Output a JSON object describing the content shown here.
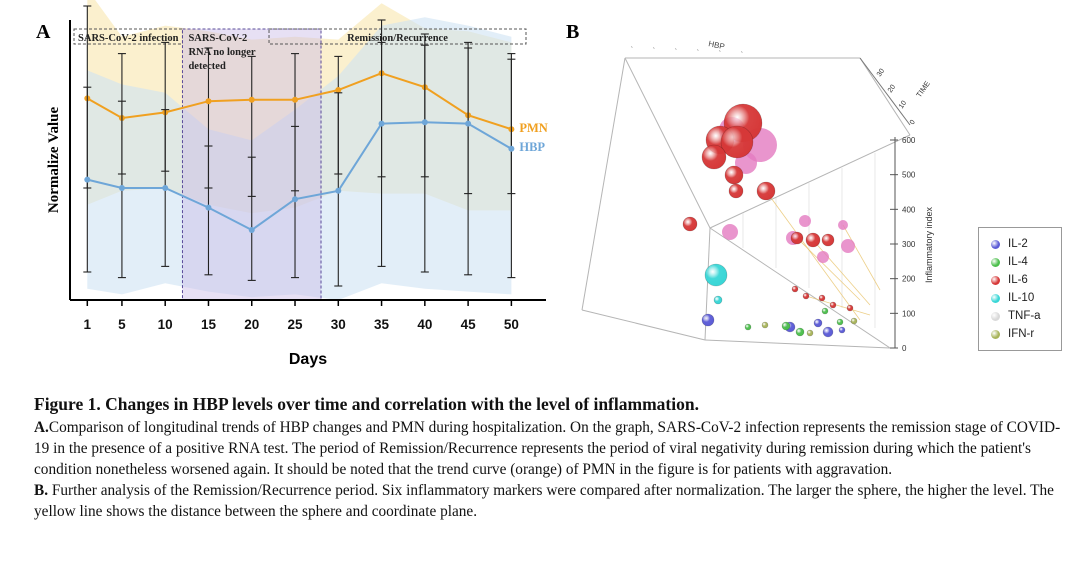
{
  "panel_a": {
    "label": "A",
    "phases": [
      {
        "label_lines": [
          "SARS-CoV-2 infection"
        ],
        "range": [
          1,
          15
        ]
      },
      {
        "label_lines": [
          "SARS-CoV-2",
          "RNA no longer",
          "detected"
        ],
        "range": [
          15,
          25
        ]
      },
      {
        "label_lines": [
          "Remission/Recurrence"
        ],
        "range": [
          25,
          50
        ]
      }
    ]
  },
  "panel_b": {
    "label": "B",
    "axis_labels": {
      "x_top": "HBP",
      "y_right": "TIME",
      "z": "Inflammatory index"
    },
    "z_ticks": [
      0,
      100,
      200,
      300,
      400,
      500,
      600
    ],
    "y_ticks": [
      0,
      10,
      20,
      30
    ],
    "legend": [
      {
        "name": "IL-2",
        "color": "#5b5bd6"
      },
      {
        "name": "IL-4",
        "color": "#4cbf4c"
      },
      {
        "name": "IL-6",
        "color": "#d63838"
      },
      {
        "name": "IL-10",
        "color": "#38d6d6"
      },
      {
        "name": "TNF-a",
        "color": "#d9d9d9"
      },
      {
        "name": "IFN-r",
        "color": "#a8b45a"
      }
    ]
  },
  "chart_data": [
    {
      "type": "line",
      "title": "",
      "xlabel": "Days",
      "ylabel": "Normalize Value",
      "x": [
        1,
        5,
        10,
        15,
        20,
        25,
        30,
        35,
        40,
        45,
        50
      ],
      "xlim": [
        -1,
        54
      ],
      "ylim": [
        0,
        10
      ],
      "series": [
        {
          "name": "PMN",
          "color": "#f0a020",
          "band_color": "#f7e4a6",
          "values": [
            7.2,
            6.5,
            6.7,
            7.1,
            7.15,
            7.15,
            7.5,
            8.1,
            7.6,
            6.6,
            6.1
          ],
          "error_low": [
            4.0,
            4.5,
            4.6,
            4.0,
            3.7,
            3.9,
            4.5,
            4.4,
            4.4,
            3.8,
            3.8
          ],
          "error_high": [
            10.5,
            8.8,
            9.2,
            9.0,
            8.7,
            8.8,
            8.7,
            10.0,
            9.1,
            9.0,
            8.6
          ]
        },
        {
          "name": "HBP",
          "color": "#6ea6d8",
          "band_color": "#cfe3f3",
          "values": [
            4.3,
            4.0,
            4.0,
            3.3,
            2.5,
            3.6,
            3.9,
            6.3,
            6.35,
            6.3,
            5.4
          ],
          "error_low": [
            1.0,
            0.8,
            1.2,
            0.9,
            0.7,
            0.8,
            0.5,
            1.2,
            1.0,
            0.9,
            0.8
          ],
          "error_high": [
            7.6,
            7.1,
            6.8,
            5.5,
            5.1,
            6.2,
            7.4,
            9.2,
            9.5,
            9.2,
            8.8
          ]
        }
      ]
    }
  ],
  "caption": {
    "title": "Figure 1. Changes in HBP levels over time and correlation with the level of inflammation.",
    "a_label": "A.",
    "a_text": "Comparison of longitudinal trends of HBP changes and PMN during hospitalization. On the graph, SARS-CoV-2 infection represents the remission stage of COVID-19 in the presence of a positive RNA test. The period of Remission/Recurrence represents the period of viral negativity during remission during which the patient's condition nonetheless worsened again. It should be noted that the trend curve (orange) of PMN in the figure is for patients with aggravation.",
    "b_label": "B.",
    "b_text": "Further analysis of the Remission/Recurrence period. Six inflammatory markers were compared after normalization. The larger the sphere, the higher the level. The yellow line shows the distance between the sphere and coordinate plane."
  }
}
